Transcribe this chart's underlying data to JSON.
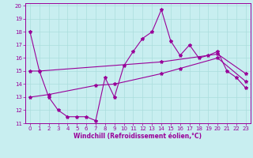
{
  "xlabel": "Windchill (Refroidissement éolien,°C)",
  "background_color": "#c8eef0",
  "grid_color": "#aadddd",
  "line_color": "#990099",
  "xlim": [
    -0.5,
    23.5
  ],
  "ylim": [
    11,
    20.2
  ],
  "xticks": [
    0,
    1,
    2,
    3,
    4,
    5,
    6,
    7,
    8,
    9,
    10,
    11,
    12,
    13,
    14,
    15,
    16,
    17,
    18,
    19,
    20,
    21,
    22,
    23
  ],
  "yticks": [
    11,
    12,
    13,
    14,
    15,
    16,
    17,
    18,
    19,
    20
  ],
  "line1_x": [
    0,
    1,
    2,
    3,
    4,
    5,
    6,
    7,
    8,
    9,
    10,
    11,
    12,
    13,
    14,
    15,
    16,
    17,
    18,
    19,
    20,
    21,
    22,
    23
  ],
  "line1_y": [
    18,
    15,
    13,
    12,
    11.5,
    11.5,
    11.5,
    11.2,
    14.5,
    13.0,
    15.4,
    16.5,
    17.5,
    18.0,
    19.7,
    17.3,
    16.2,
    17.0,
    16.0,
    16.2,
    16.5,
    15.0,
    14.5,
    13.7
  ],
  "line2_x": [
    0,
    2,
    7,
    9,
    14,
    16,
    20,
    23
  ],
  "line2_y": [
    13.0,
    13.2,
    13.9,
    14.0,
    14.8,
    15.2,
    16.0,
    14.2
  ],
  "line3_x": [
    0,
    1,
    14,
    20,
    23
  ],
  "line3_y": [
    15.0,
    15.0,
    15.7,
    16.3,
    14.8
  ],
  "xlabel_fontsize": 5.5,
  "tick_fontsize": 5
}
